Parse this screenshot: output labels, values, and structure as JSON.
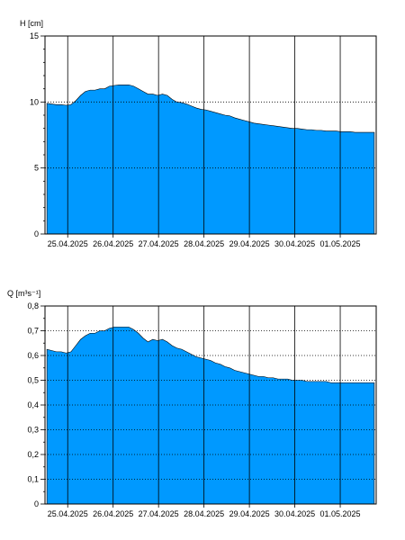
{
  "colors": {
    "area": "#0099ff",
    "axis": "#000000",
    "grid": "#000000",
    "background": "#ffffff"
  },
  "chart_data": [
    {
      "type": "area",
      "ylabel": "H [cm]",
      "ylim": [
        0,
        15
      ],
      "yticks": [
        0,
        5,
        10,
        15
      ],
      "ytick_labels": [
        "0",
        "5",
        "10",
        "15"
      ],
      "minor_step": 1,
      "grid": "dotted horizontal at major y ticks, solid vertical at day boundaries",
      "x_start": "24.04.2025 12:00",
      "x_end": "01.05.2025 19:00",
      "data_start": "24.04.2025 13:00",
      "data_end": "01.05.2025 18:00",
      "x_tick_labels": [
        "25.04.2025",
        "26.04.2025",
        "27.04.2025",
        "28.04.2025",
        "29.04.2025",
        "30.04.2025",
        "01.05.2025"
      ],
      "day_lines": [
        "25.04.2025 00:00",
        "26.04.2025 00:00",
        "27.04.2025 00:00",
        "28.04.2025 00:00",
        "29.04.2025 00:00",
        "30.04.2025 00:00",
        "01.05.2025 00:00"
      ],
      "series": [
        {
          "values": [
            9.9,
            9.85,
            9.8,
            9.8,
            9.75,
            9.8,
            10.1,
            10.5,
            10.8,
            10.9,
            10.9,
            11.0,
            11.0,
            11.2,
            11.25,
            11.3,
            11.3,
            11.3,
            11.2,
            11.0,
            10.8,
            10.6,
            10.6,
            10.5,
            10.6,
            10.5,
            10.2,
            10.0,
            9.95,
            9.85,
            9.7,
            9.55,
            9.45,
            9.4,
            9.3,
            9.2,
            9.1,
            9.0,
            8.95,
            8.8,
            8.7,
            8.6,
            8.5,
            8.4,
            8.35,
            8.3,
            8.25,
            8.2,
            8.15,
            8.1,
            8.05,
            8.0,
            8.0,
            7.95,
            7.9,
            7.9,
            7.85,
            7.85,
            7.8,
            7.8,
            7.8,
            7.75,
            7.75,
            7.75,
            7.7,
            7.7,
            7.7,
            7.7,
            7.7
          ]
        }
      ]
    },
    {
      "type": "area",
      "ylabel": "Q [m³s⁻¹]",
      "ylim": [
        0,
        0.8
      ],
      "yticks": [
        0,
        0.1,
        0.2,
        0.3,
        0.4,
        0.5,
        0.6,
        0.7,
        0.8
      ],
      "ytick_labels": [
        "0",
        "0,1",
        "0,2",
        "0,3",
        "0,4",
        "0,5",
        "0,6",
        "0,7",
        "0,8"
      ],
      "minor_step": 0.05,
      "grid": "dotted horizontal at major y ticks, solid vertical at day boundaries",
      "x_start": "24.04.2025 12:00",
      "x_end": "01.05.2025 19:00",
      "data_start": "24.04.2025 13:00",
      "data_end": "01.05.2025 18:00",
      "x_tick_labels": [
        "25.04.2025",
        "26.04.2025",
        "27.04.2025",
        "28.04.2025",
        "29.04.2025",
        "30.04.2025",
        "01.05.2025"
      ],
      "day_lines": [
        "25.04.2025 00:00",
        "26.04.2025 00:00",
        "27.04.2025 00:00",
        "28.04.2025 00:00",
        "29.04.2025 00:00",
        "30.04.2025 00:00",
        "01.05.2025 00:00"
      ],
      "series": [
        {
          "values": [
            0.625,
            0.62,
            0.615,
            0.615,
            0.61,
            0.615,
            0.64,
            0.665,
            0.68,
            0.69,
            0.69,
            0.7,
            0.7,
            0.71,
            0.715,
            0.715,
            0.715,
            0.715,
            0.705,
            0.69,
            0.67,
            0.655,
            0.665,
            0.66,
            0.665,
            0.655,
            0.64,
            0.63,
            0.625,
            0.615,
            0.605,
            0.595,
            0.59,
            0.585,
            0.58,
            0.57,
            0.565,
            0.555,
            0.55,
            0.54,
            0.535,
            0.53,
            0.525,
            0.52,
            0.515,
            0.515,
            0.51,
            0.51,
            0.505,
            0.505,
            0.505,
            0.5,
            0.5,
            0.5,
            0.495,
            0.495,
            0.495,
            0.495,
            0.495,
            0.49,
            0.49,
            0.49,
            0.49,
            0.49,
            0.49,
            0.49,
            0.49,
            0.49,
            0.49
          ]
        }
      ]
    }
  ]
}
